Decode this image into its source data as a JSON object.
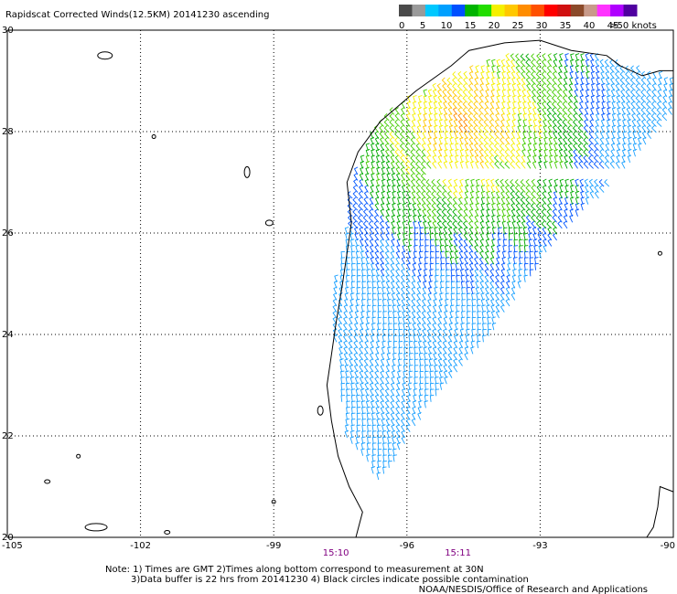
{
  "title": "Rapidscat Corrected Winds(12.5KM) 20141230 ascending",
  "colorbar": {
    "ticks": [
      "0",
      "5",
      "10",
      "15",
      "20",
      "25",
      "30",
      "35",
      "40",
      "45",
      ">50 knots"
    ],
    "colors": [
      "#4a4a4a",
      "#9a9a9a",
      "#00c8ff",
      "#00a0ff",
      "#0050ff",
      "#00b400",
      "#22dd00",
      "#f5f000",
      "#ffc800",
      "#ff8c00",
      "#ff5000",
      "#ff0000",
      "#d01010",
      "#8b4a2a",
      "#c89a8a",
      "#ff33ff",
      "#b000ff",
      "#5000a0"
    ]
  },
  "axes": {
    "lon_labels": [
      "-105",
      "-102",
      "-99",
      "-96",
      "-93",
      "-90"
    ],
    "lat_labels": [
      "30",
      "28",
      "26",
      "24",
      "22",
      "20"
    ]
  },
  "times": [
    {
      "label": "15:10",
      "lon": -97.6
    },
    {
      "label": "15:11",
      "lon": -94.85
    }
  ],
  "notes": {
    "line1": "Note: 1) Times are GMT 2)Times along bottom correspond to measurement at 30N",
    "line2": "3)Data buffer is 22 hrs from 20141230 4) Black circles indicate possible contamination",
    "line3": "NOAA/NESDIS/Office of Research and Applications"
  },
  "map": {
    "lon_range": [
      -105,
      -90
    ],
    "lat_range": [
      20,
      30
    ]
  },
  "wind_field": {
    "swath_polygon": [
      [
        -96.6,
        21.05
      ],
      [
        -97.4,
        22.0
      ],
      [
        -97.5,
        23.0
      ],
      [
        -97.6,
        24.0
      ],
      [
        -97.6,
        25.0
      ],
      [
        -97.35,
        26.0
      ],
      [
        -97.3,
        26.5
      ],
      [
        -97.1,
        27.2
      ],
      [
        -96.8,
        27.9
      ],
      [
        -96.1,
        28.5
      ],
      [
        -95.0,
        29.0
      ],
      [
        -94.0,
        29.35
      ],
      [
        -93.0,
        29.5
      ],
      [
        -91.6,
        29.4
      ],
      [
        -90.0,
        29.0
      ],
      [
        -90.0,
        28.3
      ],
      [
        -91.3,
        27.0
      ],
      [
        -92.5,
        26.0
      ],
      [
        -93.3,
        25.0
      ],
      [
        -94.1,
        24.0
      ],
      [
        -94.8,
        23.3
      ],
      [
        -95.7,
        22.3
      ]
    ],
    "gap_band": {
      "lat_center": 27.1,
      "half_width": 0.12,
      "lon_min": -95.5,
      "lon_max": -91.0
    }
  }
}
